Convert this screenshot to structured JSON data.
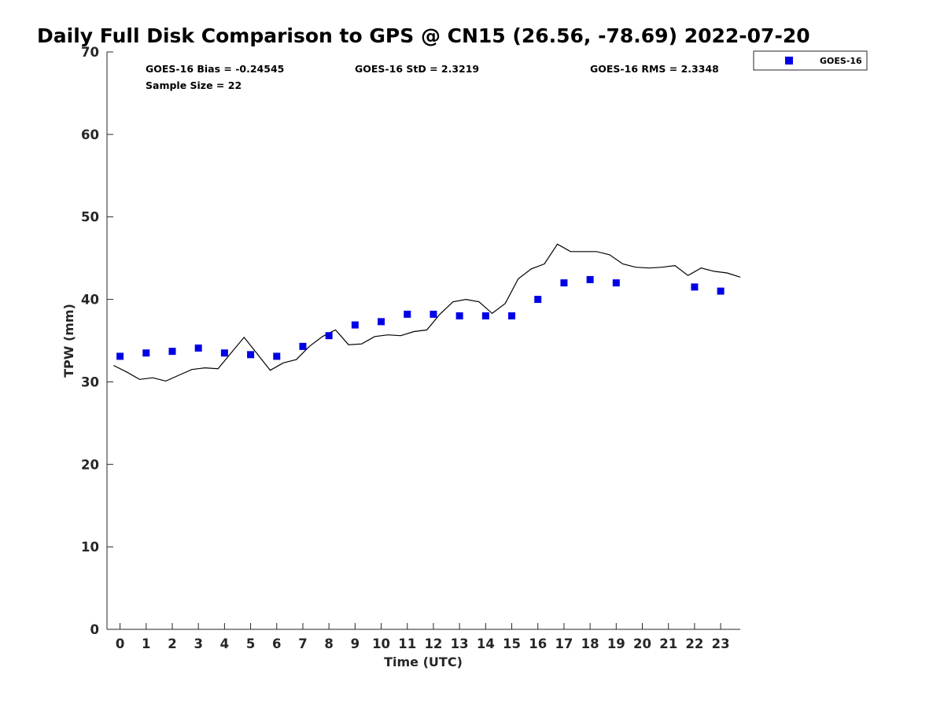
{
  "chart_data": {
    "type": "scatter",
    "title": "Daily Full Disk Comparison to GPS @ CN15 (26.56, -78.69) 2022-07-20",
    "xlabel": "Time (UTC)",
    "ylabel": "TPW (mm)",
    "xlim": [
      -0.5,
      23.75
    ],
    "ylim": [
      0,
      70
    ],
    "xticks": [
      0,
      1,
      2,
      3,
      4,
      5,
      6,
      7,
      8,
      9,
      10,
      11,
      12,
      13,
      14,
      15,
      16,
      17,
      18,
      19,
      20,
      21,
      22,
      23
    ],
    "yticks": [
      0,
      10,
      20,
      30,
      40,
      50,
      60,
      70
    ],
    "grid": false,
    "legend_position": "top-right outside",
    "stats": {
      "bias": "GOES-16 Bias = -0.24545",
      "std": "GOES-16 StD = 2.3219",
      "rms": "GOES-16 RMS = 2.3348",
      "sample_size": "Sample Size = 22"
    },
    "series": [
      {
        "name": "GOES-16",
        "kind": "markers",
        "marker": "square",
        "color": "#0000e6",
        "x": [
          0,
          1,
          2,
          3,
          4,
          5,
          6,
          7,
          8,
          9,
          10,
          11,
          12,
          13,
          14,
          15,
          16,
          17,
          18,
          19,
          22,
          23
        ],
        "y": [
          33.1,
          33.5,
          33.7,
          34.1,
          33.5,
          33.3,
          33.1,
          34.3,
          35.6,
          36.9,
          37.3,
          38.2,
          38.2,
          38.0,
          38.0,
          38.0,
          40.0,
          42.0,
          42.4,
          42.0,
          41.5,
          41.0
        ]
      },
      {
        "kind": "line",
        "color": "#000000",
        "x": [
          -0.25,
          0.25,
          0.75,
          1.25,
          1.75,
          2.25,
          2.75,
          3.25,
          3.75,
          4.25,
          4.75,
          5.25,
          5.75,
          6.25,
          6.75,
          7.25,
          7.75,
          8.25,
          8.75,
          9.25,
          9.75,
          10.25,
          10.75,
          11.25,
          11.75,
          12.25,
          12.75,
          13.25,
          13.75,
          14.25,
          14.75,
          15.25,
          15.75,
          16.25,
          16.75,
          17.25,
          17.75,
          18.25,
          18.75,
          19.25,
          19.75,
          20.25,
          20.75,
          21.25,
          21.75,
          22.25,
          22.75,
          23.25,
          23.75
        ],
        "y": [
          32.0,
          31.2,
          30.3,
          30.5,
          30.1,
          30.8,
          31.5,
          31.7,
          31.6,
          33.5,
          35.4,
          33.4,
          31.4,
          32.3,
          32.7,
          34.3,
          35.5,
          36.3,
          34.5,
          34.6,
          35.5,
          35.7,
          35.6,
          36.1,
          36.3,
          38.2,
          39.7,
          40.0,
          39.7,
          38.3,
          39.5,
          42.5,
          43.7,
          44.3,
          46.7,
          45.8,
          45.8,
          45.8,
          45.4,
          44.3,
          43.9,
          43.8,
          43.9,
          44.1,
          42.9,
          43.8,
          43.4,
          43.2,
          42.7
        ]
      }
    ]
  }
}
